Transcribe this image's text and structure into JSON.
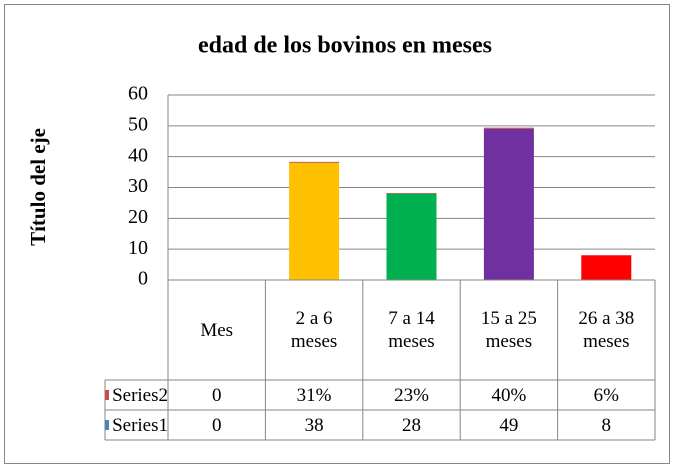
{
  "chart_data": {
    "type": "bar",
    "stacked": true,
    "title": "edad de los bovinos  en meses",
    "y_label": "Título del eje",
    "categories": [
      "Mes",
      "2 a  6 meses",
      "7  a 14 meses",
      "15 a 25 meses",
      "26 a 38 meses"
    ],
    "series": [
      {
        "name": "Series1",
        "color": "#4f81bd",
        "colors": [
          "#4f81bd",
          "#ffc000",
          "#00b050",
          "#7030a0",
          "#ff0000"
        ],
        "values": [
          0,
          38,
          28,
          49,
          8
        ]
      },
      {
        "name": "Series2",
        "color": "#c0504d",
        "values": [
          0,
          0.31,
          0.23,
          0.4,
          0.06
        ],
        "value_labels": [
          "0",
          "31%",
          "23%",
          "40%",
          "6%"
        ]
      }
    ],
    "ylim": [
      0,
      60
    ],
    "yticks": [
      0,
      10,
      20,
      30,
      40,
      50,
      60
    ],
    "grid": true,
    "data_table": true
  }
}
